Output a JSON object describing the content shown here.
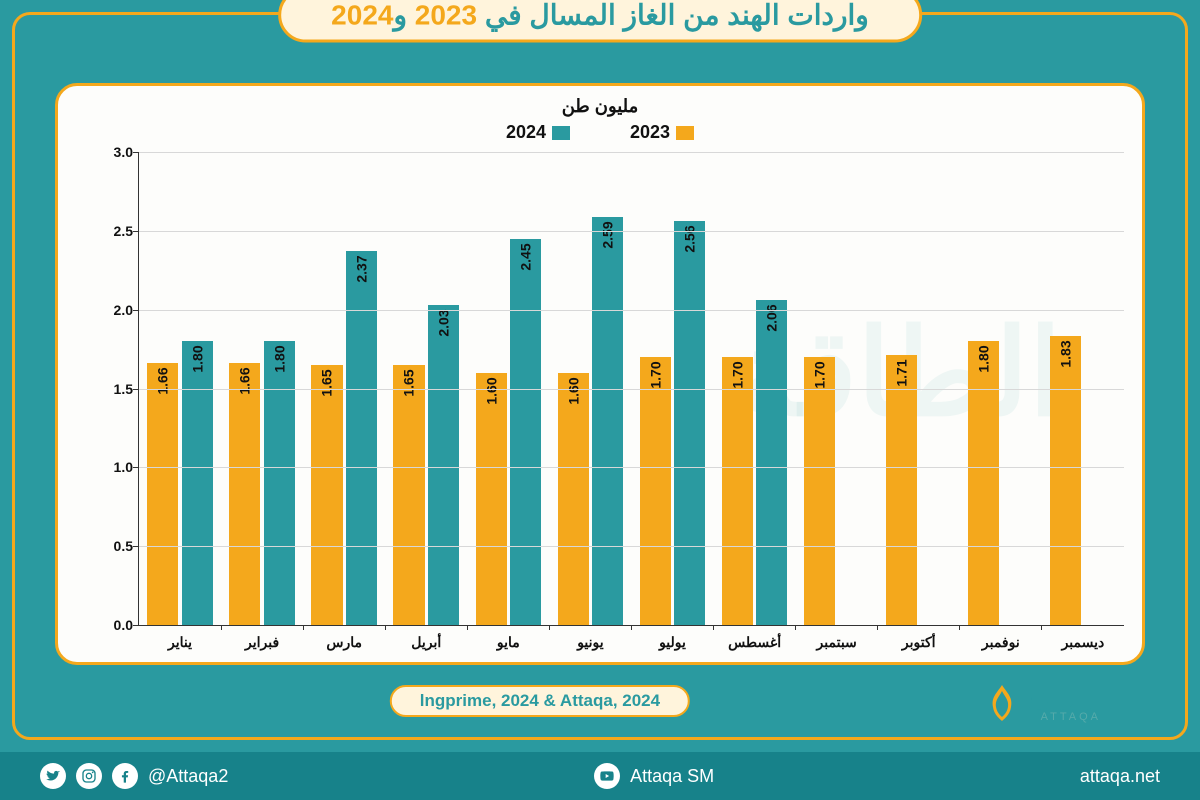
{
  "title": {
    "prefix": "واردات الهند من الغاز المسال في ",
    "year1": "2023",
    "and": " و",
    "year2": "2024"
  },
  "chart": {
    "type": "bar",
    "y_unit_label": "مليون طن",
    "ylim": [
      0,
      3.0
    ],
    "ytick_step": 0.5,
    "yticks": [
      "0.0",
      "0.5",
      "1.0",
      "1.5",
      "2.0",
      "2.5",
      "3.0"
    ],
    "grid_color": "#d8d8d8",
    "axis_color": "#333333",
    "background_color": "#fdfdfb",
    "card_border_color": "#f4a81c",
    "series": [
      {
        "name": "2023",
        "color": "#f4a81c"
      },
      {
        "name": "2024",
        "color": "#2a9aa0"
      }
    ],
    "months": [
      {
        "label": "يناير",
        "v2023": 1.66,
        "v2024": 1.8
      },
      {
        "label": "فبراير",
        "v2023": 1.66,
        "v2024": 1.8
      },
      {
        "label": "مارس",
        "v2023": 1.65,
        "v2024": 2.37
      },
      {
        "label": "أبريل",
        "v2023": 1.65,
        "v2024": 2.03
      },
      {
        "label": "مايو",
        "v2023": 1.6,
        "v2024": 2.45
      },
      {
        "label": "يونيو",
        "v2023": 1.6,
        "v2024": 2.59
      },
      {
        "label": "يوليو",
        "v2023": 1.7,
        "v2024": 2.56
      },
      {
        "label": "أغسطس",
        "v2023": 1.7,
        "v2024": 2.06
      },
      {
        "label": "سبتمبر",
        "v2023": 1.7,
        "v2024": null
      },
      {
        "label": "أكتوبر",
        "v2023": 1.71,
        "v2024": null
      },
      {
        "label": "نوفمبر",
        "v2023": 1.8,
        "v2024": null
      },
      {
        "label": "ديسمبر",
        "v2023": 1.83,
        "v2024": null
      }
    ],
    "bar_label_fontsize": 14,
    "axis_label_fontsize": 14
  },
  "source_text": "lngprime, 2024 & Attaqa, 2024",
  "brand": {
    "ar": "الطاقة",
    "en": "ATTAQA"
  },
  "footer": {
    "handle": "@Attaqa2",
    "youtube": "Attaqa SM",
    "site": "attaqa.net"
  },
  "colors": {
    "page_bg": "#2a9aa0",
    "frame_border": "#f4a81c",
    "title_bg": "#fff4dc",
    "title_text": "#2a9aa0",
    "title_year": "#f4a81c",
    "footer_bg": "#17828a",
    "footer_text": "#ffffff"
  }
}
